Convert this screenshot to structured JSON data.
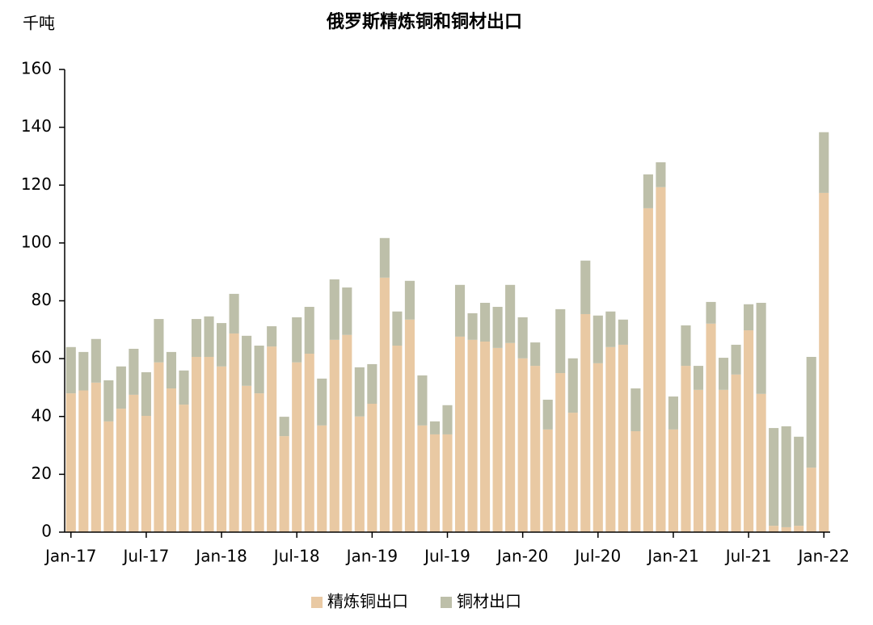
{
  "chart_data": {
    "type": "stacked_bar",
    "title": "俄罗斯精炼铜和铜材出口",
    "y_label": "千吨",
    "categories": [
      "Jan-17",
      null,
      null,
      null,
      null,
      null,
      "Jul-17",
      null,
      null,
      null,
      null,
      null,
      "Jan-18",
      null,
      null,
      null,
      null,
      null,
      "Jul-18",
      null,
      null,
      null,
      null,
      null,
      "Jan-19",
      null,
      null,
      null,
      null,
      null,
      "Jul-19",
      null,
      null,
      null,
      null,
      null,
      "Jan-20",
      null,
      null,
      null,
      null,
      null,
      "Jul-20",
      null,
      null,
      null,
      null,
      null,
      "Jan-21",
      null,
      null,
      null,
      null,
      null,
      "Jul-21",
      null,
      null,
      null,
      null,
      null,
      "Jan-22"
    ],
    "series": [
      {
        "name": "精炼铜出口",
        "color": "#e9c9a3",
        "values": [
          48,
          49,
          51.7,
          38.3,
          42.7,
          47.5,
          40.2,
          58.7,
          49.7,
          44.1,
          60.6,
          60.6,
          57.3,
          68.7,
          50.6,
          48,
          64.2,
          33.2,
          58.7,
          61.7,
          36.9,
          66.5,
          68.2,
          40,
          44.4,
          88,
          64.5,
          73.5,
          36.9,
          33.8,
          33.8,
          67.6,
          66.5,
          65.9,
          63.7,
          65.4,
          60.1,
          57.5,
          35.5,
          55,
          41.3,
          75.4,
          58.4,
          64,
          64.8,
          34.9,
          112,
          119.3,
          35.5,
          57.5,
          49.2,
          72.1,
          49.2,
          54.5,
          69.8,
          47.8,
          2.2,
          1.7,
          2.2,
          22.3,
          117.3
        ]
      },
      {
        "name": "铜材出口",
        "color": "#bdbfa9",
        "values": [
          16,
          13.3,
          15.1,
          14.2,
          14.6,
          15.9,
          15.1,
          15,
          12.6,
          11.8,
          13.1,
          14,
          15,
          13.7,
          17.3,
          16.5,
          7,
          6.7,
          15.6,
          16.2,
          16.2,
          20.9,
          16.4,
          17,
          13.7,
          13.7,
          11.8,
          13.4,
          17.3,
          4.5,
          10.1,
          17.9,
          9.2,
          13.4,
          14.2,
          20.1,
          14.2,
          8.1,
          10.3,
          22.1,
          18.8,
          18.5,
          16.5,
          12.3,
          8.7,
          14.8,
          11.7,
          8.6,
          11.4,
          14,
          8.3,
          7.5,
          11.1,
          10.3,
          9,
          31.5,
          33.8,
          34.9,
          30.8,
          38.3,
          21
        ]
      }
    ],
    "ylim": [
      0,
      160
    ],
    "yticks": [
      0,
      20,
      40,
      60,
      80,
      100,
      120,
      140,
      160
    ],
    "grid": false,
    "legend": "bottom"
  }
}
